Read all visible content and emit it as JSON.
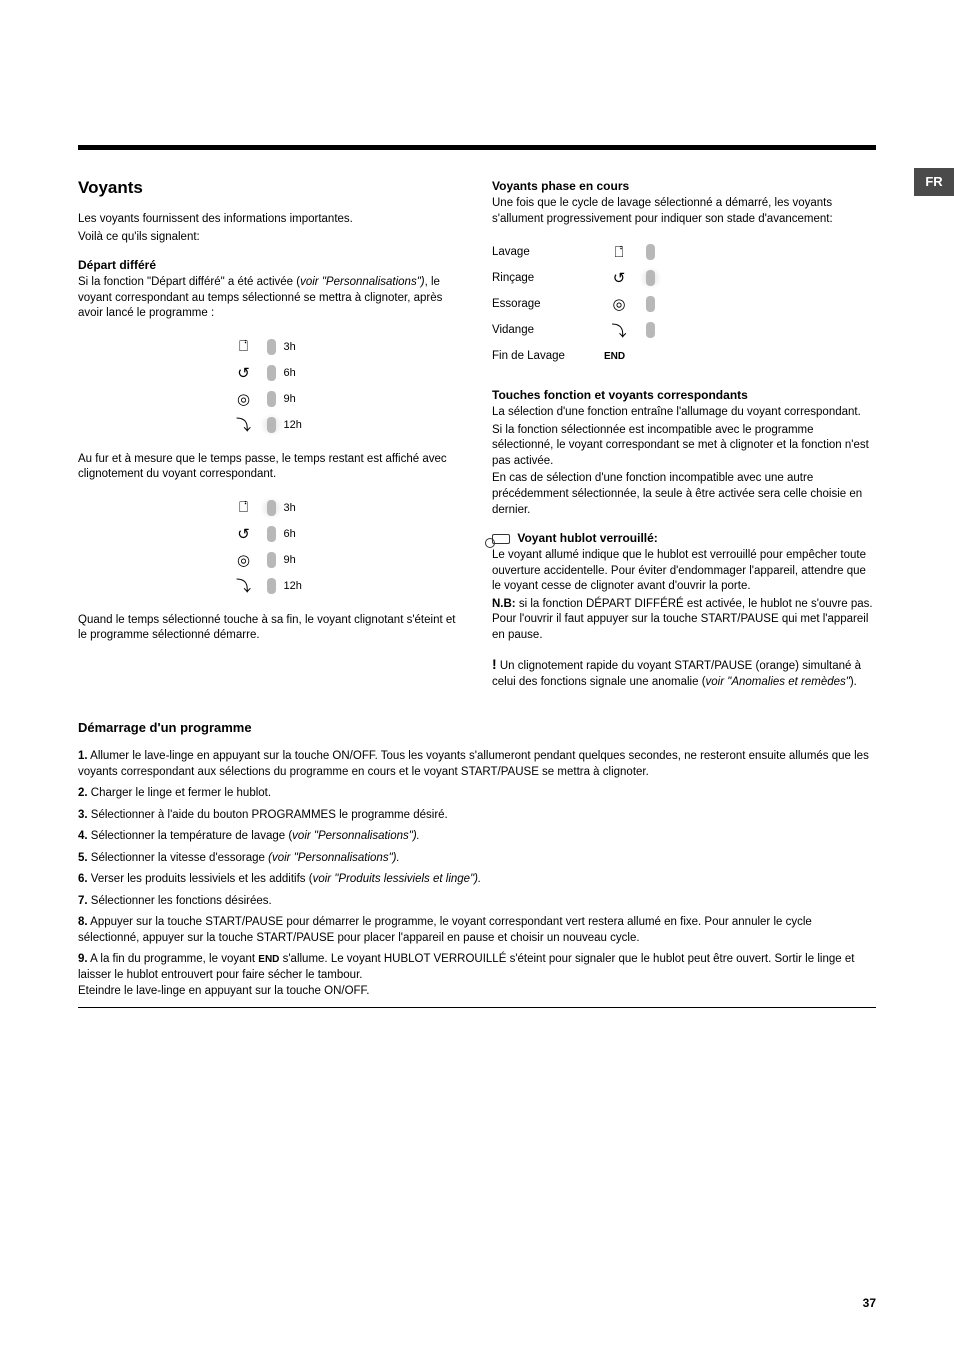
{
  "lang_tab": "FR",
  "left": {
    "h1": "Voyants",
    "intro1": "Les voyants fournissent des informations importantes.",
    "intro2": "Voilà ce qu'ils signalent:",
    "depart_heading": "Départ différé",
    "depart_p": "Si la fonction \"Départ différé\" a été activée (",
    "depart_p_italic": "voir \"Personnalisations\")",
    "depart_p_end": ", le voyant correspondant au temps sélectionné se mettra à clignoter, après avoir lancé le programme :",
    "delay1": [
      {
        "icon": "⎕̇̇",
        "label": "3h"
      },
      {
        "icon": "↺",
        "label": "6h"
      },
      {
        "icon": "◎",
        "label": "9h"
      },
      {
        "icon": "⤵",
        "label": "12h",
        "glow": true
      }
    ],
    "para_mid": "Au fur et à mesure que le temps passe, le temps restant est affiché avec clignotement du voyant correspondant.",
    "delay2": [
      {
        "icon": "⎕̇̇",
        "label": "3h",
        "glow": true
      },
      {
        "icon": "↺",
        "label": "6h"
      },
      {
        "icon": "◎",
        "label": "9h"
      },
      {
        "icon": "⤵",
        "label": "12h"
      }
    ],
    "para_end": "Quand le temps sélectionné touche à sa fin, le voyant clignotant s'éteint et le programme sélectionné démarre."
  },
  "right": {
    "h_phase": "Voyants phase en cours",
    "phase_intro": "Une fois que le cycle de lavage sélectionné a démarré, les voyants s'allument progressivement pour indiquer son stade d'avancement:",
    "phases": [
      {
        "label": "Lavage",
        "icon": "⎕̇̇"
      },
      {
        "label": "Rinçage",
        "icon": "↺",
        "glow": true
      },
      {
        "label": "Essorage",
        "icon": "◎"
      },
      {
        "label": "Vidange",
        "icon": "⤵"
      },
      {
        "label": "Fin de Lavage",
        "icon": "END",
        "end": true
      }
    ],
    "h_touches": "Touches fonction et voyants correspondants",
    "touches_p1": "La sélection d'une fonction entraîne l'allumage du voyant correspondant.",
    "touches_p2": "Si la fonction sélectionnée est incompatible avec le programme sélectionné, le voyant correspondant se met à clignoter et la fonction n'est pas activée.",
    "touches_p3": "En cas de sélection d'une fonction incompatible avec une autre précédemment sélectionnée, la seule à être activée sera celle choisie en dernier.",
    "h_hublot": "Voyant hublot verrouillé:",
    "hublot_p1": "Le voyant allumé indique que le hublot est verrouillé pour empêcher toute ouverture accidentelle. Pour éviter d'endommager l'appareil, attendre que le voyant cesse de clignoter avant d'ouvrir la porte.",
    "hublot_nb_label": "N.B:",
    "hublot_nb": " si la fonction DÉPART DIFFÉRÉ est activée, le hublot ne s'ouvre pas. Pour l'ouvrir il faut appuyer sur la touche START/PAUSE qui met l'appareil en pause.",
    "warn_prefix": "!",
    "warn": " Un clignotement rapide du voyant START/PAUSE (orange) simultané à celui des fonctions signale une anomalie (",
    "warn_italic": "voir \"Anomalies et remèdes\"",
    "warn_end": ")."
  },
  "bottom": {
    "h2": "Démarrage d'un programme",
    "steps": [
      {
        "n": "1.",
        "t": "Allumer le lave-linge en appuyant sur la touche ON/OFF. Tous les voyants s'allumeront pendant quelques secondes, ne resteront ensuite allumés que les voyants correspondant aux sélections du programme en cours et le voyant START/PAUSE se mettra à clignoter."
      },
      {
        "n": "2.",
        "t": "Charger le linge et fermer le hublot."
      },
      {
        "n": "3.",
        "t": "Sélectionner à l'aide du bouton PROGRAMMES le programme désiré."
      },
      {
        "n": "4.",
        "t": "Sélectionner la température de lavage (",
        "it": "voir \"Personnalisations\").",
        "after": ""
      },
      {
        "n": "5.",
        "t": "Sélectionner la vitesse d'essorage ",
        "it": "(voir \"Personnalisations\").",
        "after": ""
      },
      {
        "n": "6.",
        "t": "Verser les produits lessiviels et les additifs (",
        "it": "voir \"Produits lessiviels et linge\").",
        "after": ""
      },
      {
        "n": "7.",
        "t": "Sélectionner les fonctions désirées."
      },
      {
        "n": "8.",
        "t": "Appuyer sur la touche START/PAUSE pour démarrer le programme, le voyant correspondant vert restera allumé en fixe. Pour annuler le cycle sélectionné, appuyer sur la touche START/PAUSE pour placer l'appareil en pause et choisir un nouveau cycle."
      },
      {
        "n": "9.",
        "t": "A la fin du programme, le voyant ",
        "end_icon": "END",
        "t2": " s'allume. Le voyant HUBLOT VERROUILLÉ s'éteint pour signaler que le hublot peut être ouvert. Sortir le linge et laisser le hublot entrouvert pour faire sécher le tambour.",
        "t3": "Eteindre le lave-linge en appuyant sur la touche ON/OFF."
      }
    ]
  },
  "page_number": "37"
}
